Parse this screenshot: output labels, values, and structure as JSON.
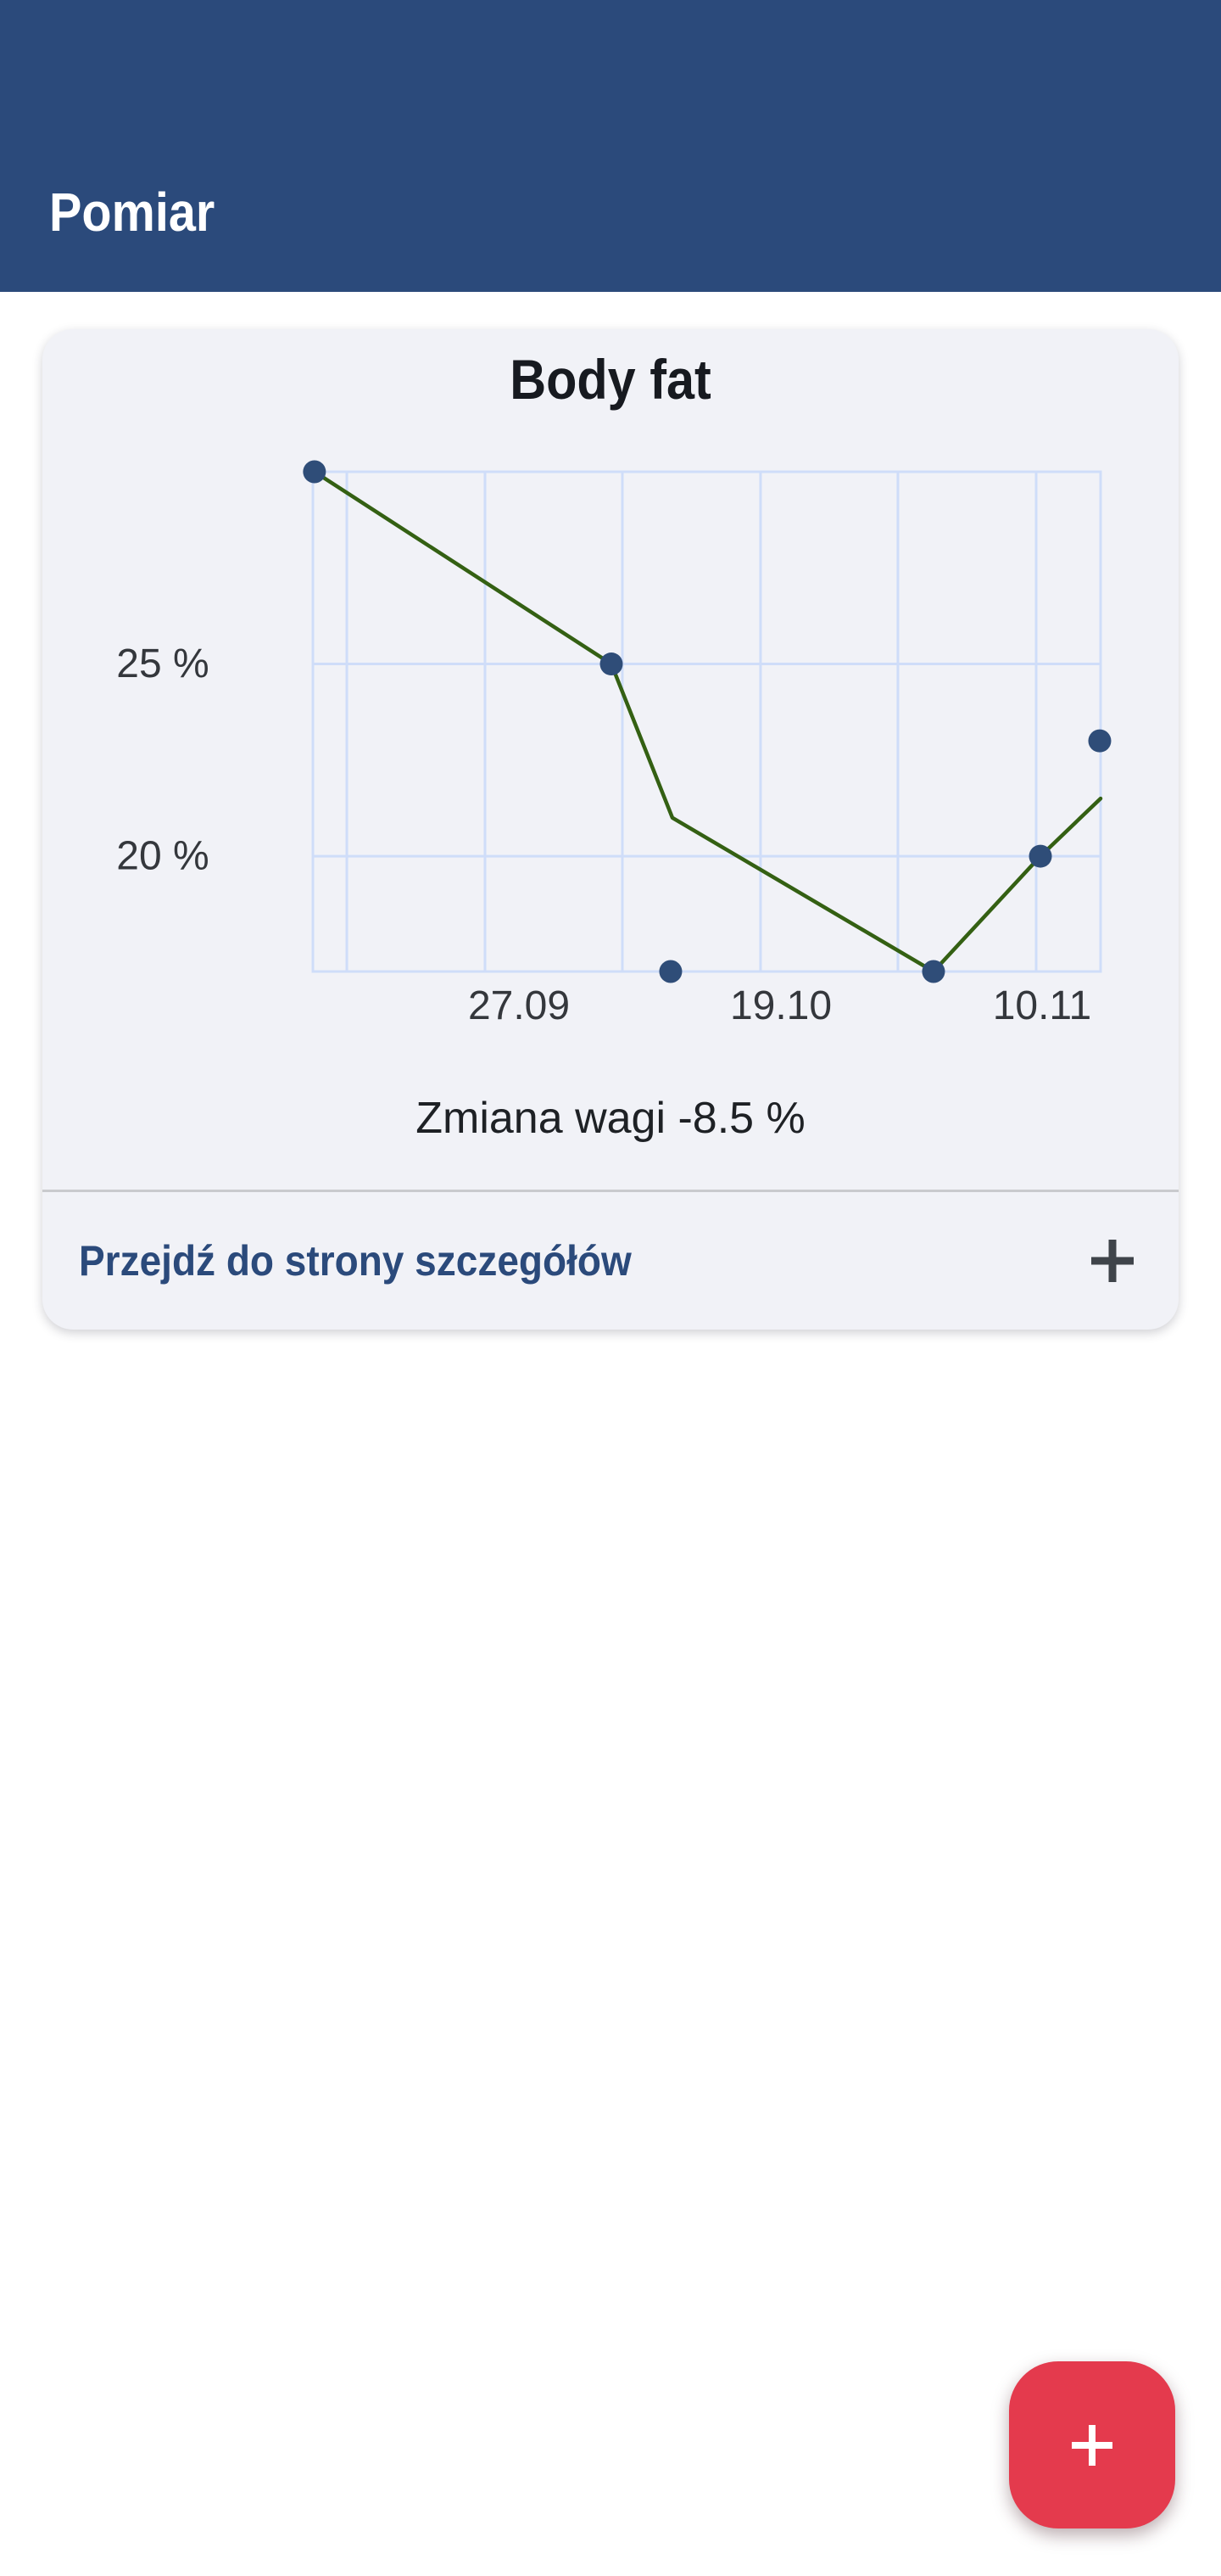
{
  "header": {
    "title": "Pomiar"
  },
  "card": {
    "title": "Body fat",
    "caption": "Zmiana wagi -8.5 %",
    "footer": {
      "link_label": "Przejdź do strony szczegółów",
      "icon": "plus-icon"
    }
  },
  "fab": {
    "icon": "plus-icon"
  },
  "colors": {
    "header_bg": "#2B4A7B",
    "header_fg": "#FFFFFF",
    "page_bg": "#FFFFFF",
    "card_bg": "#F1F2F7",
    "grid": "#CFDDF9",
    "trend_line": "#346013",
    "scatter_dot": "#2F4D78",
    "divider": "#C9CACE",
    "link": "#2B4A7B",
    "footer_plus": "#3F444A",
    "fab_bg": "#E43A4D",
    "fab_fg": "#FFFFFF",
    "axis_text": "#34373C",
    "caption_text": "#1E2125",
    "title_text": "#171A20"
  },
  "chart_data": {
    "type": "line",
    "title": "Body fat",
    "ylabel": "%",
    "caption": "Zmiana wagi -8.5 %",
    "y_range": [
      17,
      30
    ],
    "y_ticks": [
      {
        "label": "25 %",
        "value": 25
      },
      {
        "label": "20 %",
        "value": 20
      }
    ],
    "y_edge_values": {
      "top": 30,
      "bottom": 17
    },
    "x_ticks": [
      {
        "label": "27.09",
        "fx": 0.2616
      },
      {
        "label": "19.10",
        "fx": 0.5942
      },
      {
        "label": "10.11",
        "fx": 0.9257
      }
    ],
    "v_grid_fx": [
      0.0431,
      0.2185,
      0.3929,
      0.5683,
      0.7427,
      0.9182
    ],
    "grid_border": true,
    "legend": "none",
    "series": [
      {
        "name": "trend-line",
        "type": "line",
        "points": [
          {
            "fx": 0.002,
            "value": 30.0
          },
          {
            "fx": 0.3789,
            "value": 25.0
          },
          {
            "fx": 0.4564,
            "value": 21.0
          },
          {
            "fx": 0.7879,
            "value": 17.0
          },
          {
            "fx": 0.9236,
            "value": 20.0
          },
          {
            "fx": 1.0,
            "value": 21.5
          }
        ]
      },
      {
        "name": "measurements",
        "type": "scatter",
        "points": [
          {
            "fx": 0.002,
            "value": 30.0,
            "date_approx": "10.09"
          },
          {
            "fx": 0.3789,
            "value": 25.0,
            "date_approx": "05.10"
          },
          {
            "fx": 0.4542,
            "value": 17.0,
            "date_approx": "10.10"
          },
          {
            "fx": 0.7879,
            "value": 17.0,
            "date_approx": "01.11"
          },
          {
            "fx": 0.9236,
            "value": 20.0,
            "date_approx": "10.11"
          },
          {
            "fx": 0.9989,
            "value": 23.0,
            "date_approx": "15.11"
          }
        ]
      }
    ]
  }
}
